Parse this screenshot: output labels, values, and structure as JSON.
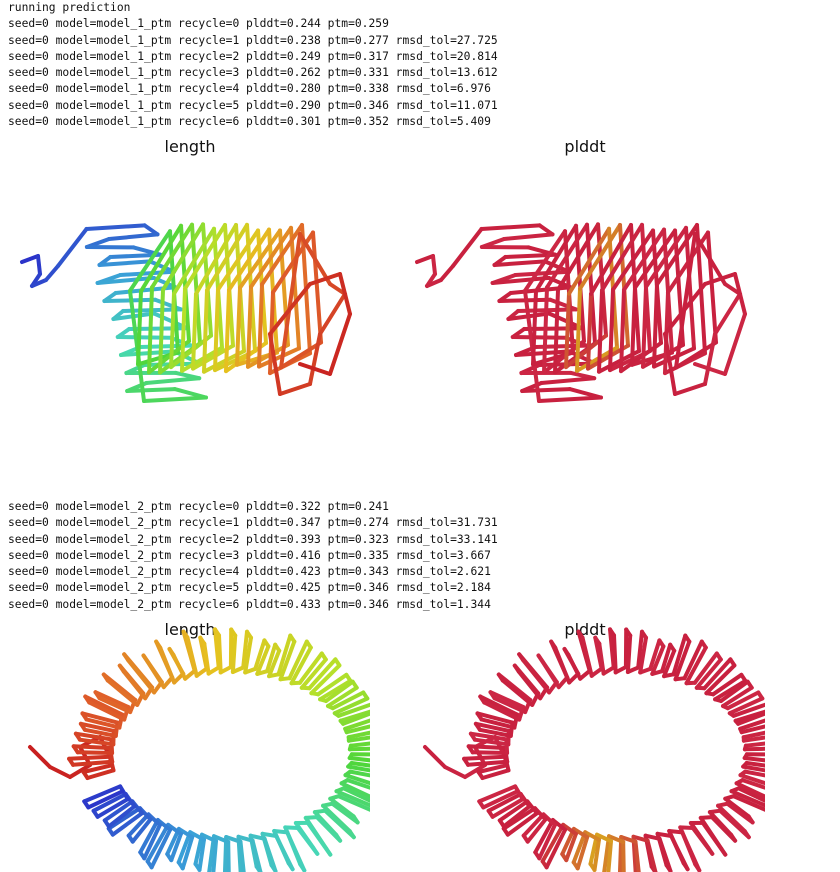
{
  "log_run1": {
    "header": "running prediction",
    "lines": [
      "seed=0 model=model_1_ptm recycle=0 plddt=0.244 ptm=0.259",
      "seed=0 model=model_1_ptm recycle=1 plddt=0.238 ptm=0.277 rmsd_tol=27.725",
      "seed=0 model=model_1_ptm recycle=2 plddt=0.249 ptm=0.317 rmsd_tol=20.814",
      "seed=0 model=model_1_ptm recycle=3 plddt=0.262 ptm=0.331 rmsd_tol=13.612",
      "seed=0 model=model_1_ptm recycle=4 plddt=0.280 ptm=0.338 rmsd_tol=6.976",
      "seed=0 model=model_1_ptm recycle=5 plddt=0.290 ptm=0.346 rmsd_tol=11.071",
      "seed=0 model=model_1_ptm recycle=6 plddt=0.301 ptm=0.352 rmsd_tol=5.409"
    ]
  },
  "figure1": {
    "left_title": "length",
    "right_title": "plddt"
  },
  "log_run2": {
    "lines": [
      "seed=0 model=model_2_ptm recycle=0 plddt=0.322 ptm=0.241",
      "seed=0 model=model_2_ptm recycle=1 plddt=0.347 ptm=0.274 rmsd_tol=31.731",
      "seed=0 model=model_2_ptm recycle=2 plddt=0.393 ptm=0.323 rmsd_tol=33.141",
      "seed=0 model=model_2_ptm recycle=3 plddt=0.416 ptm=0.335 rmsd_tol=3.667",
      "seed=0 model=model_2_ptm recycle=4 plddt=0.423 ptm=0.343 rmsd_tol=2.621",
      "seed=0 model=model_2_ptm recycle=5 plddt=0.425 ptm=0.346 rmsd_tol=2.184",
      "seed=0 model=model_2_ptm recycle=6 plddt=0.433 ptm=0.346 rmsd_tol=1.344"
    ]
  },
  "figure2": {
    "left_title": "length",
    "right_title": "plddt"
  },
  "colors": {
    "plddt_low": "#c8213f",
    "plddt_mid": "#d9a41f",
    "length_rainbow": [
      "#2b33c9",
      "#3aa0d8",
      "#47d8b5",
      "#4fd63a",
      "#b6e02a",
      "#e6c21f",
      "#e0602a",
      "#c82020"
    ]
  }
}
